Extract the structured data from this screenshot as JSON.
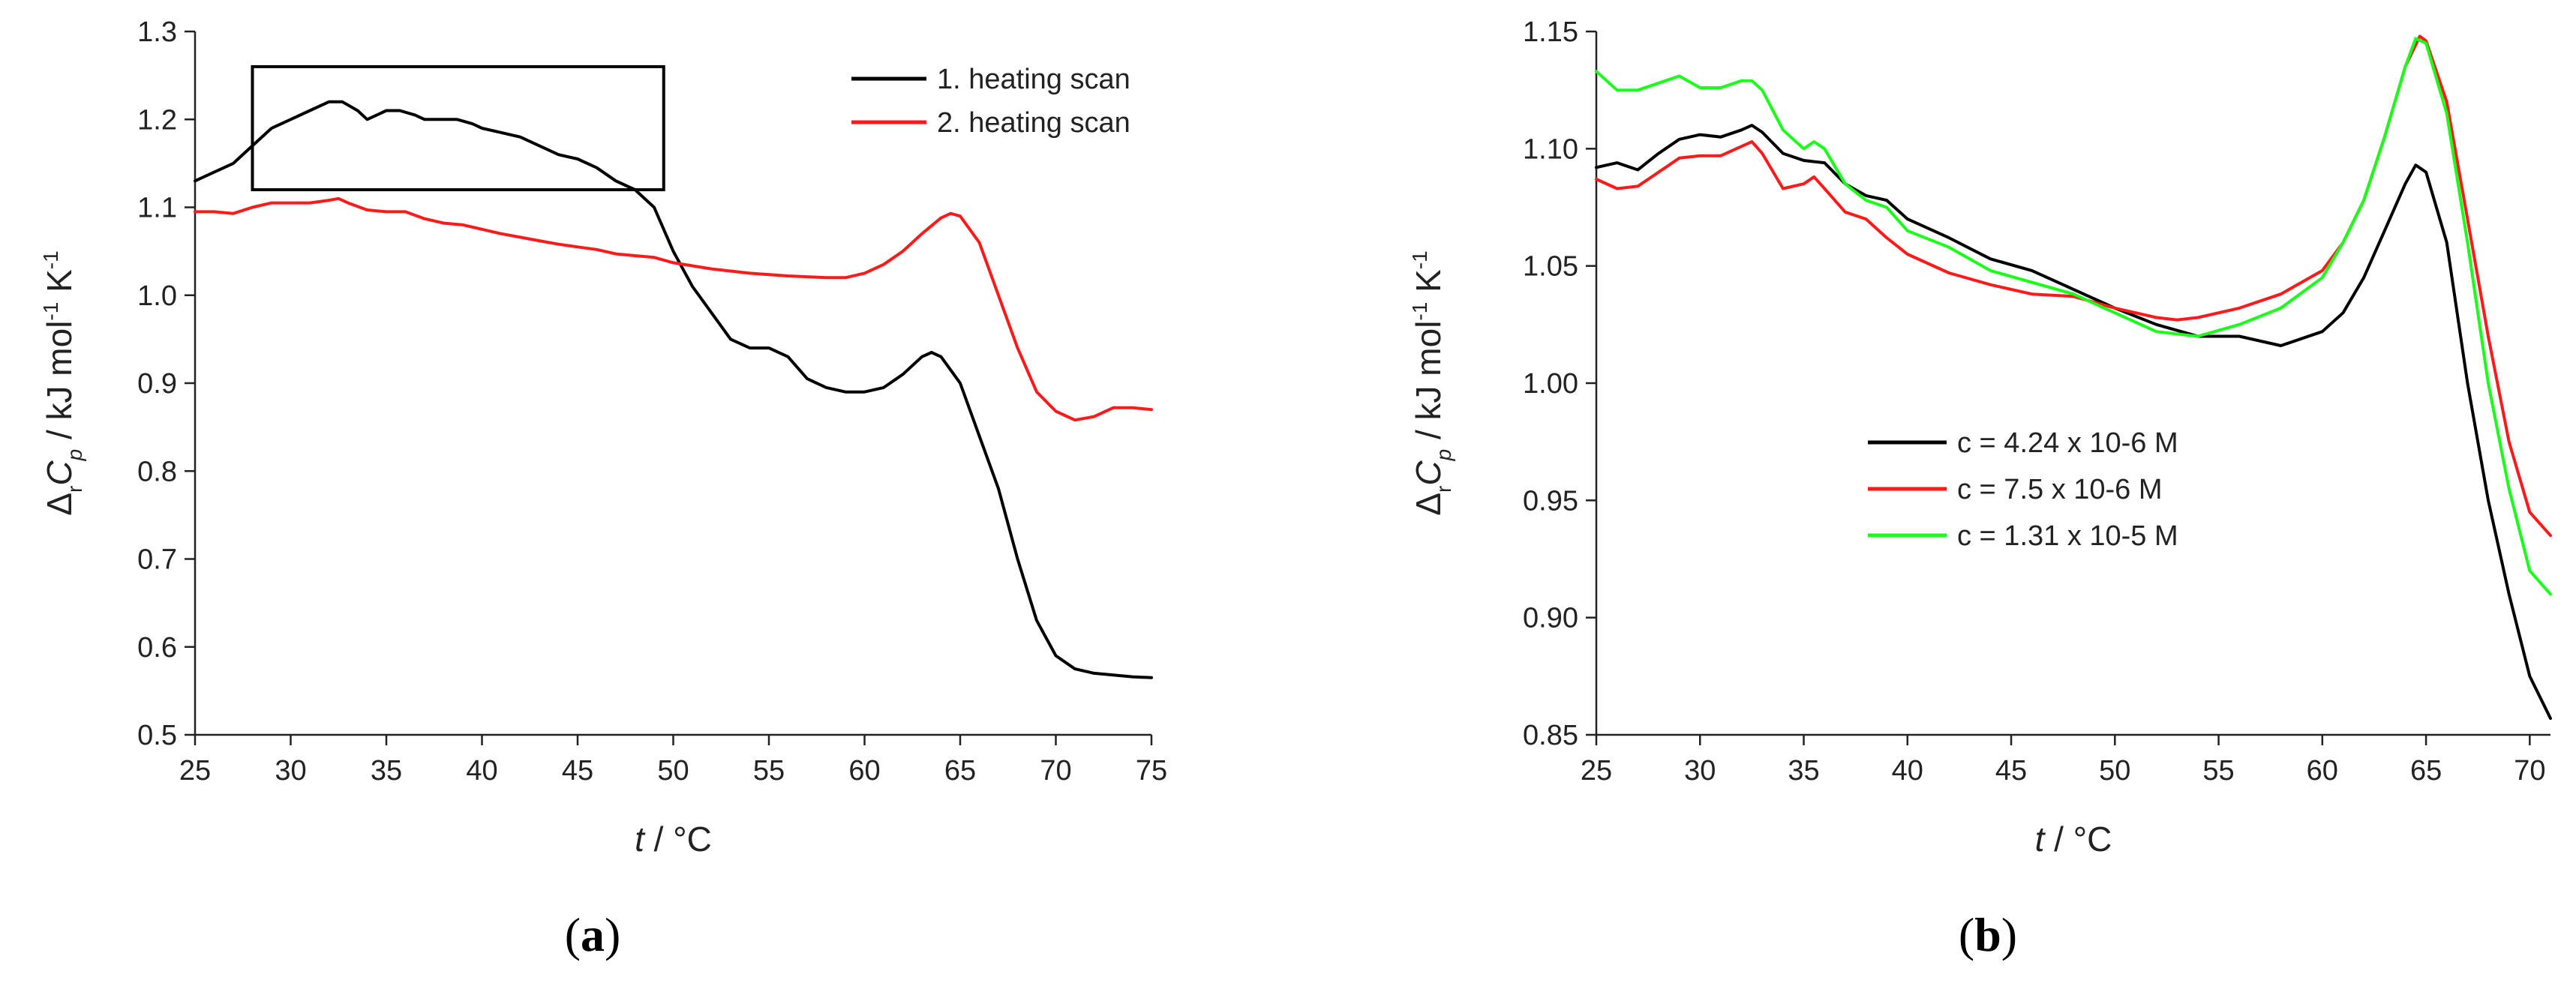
{
  "colors": {
    "black": "#000000",
    "red": "#ff1a1a",
    "green": "#1aff1a"
  },
  "chart_data": [
    {
      "type": "line",
      "panel_label": "a",
      "xlabel_var": "t",
      "xlabel_unit": " / °C",
      "ylabel": {
        "delta": "Δ",
        "r": "r",
        "C": "C",
        "p": "p",
        "unit_a": " / kJ mol",
        "exp1": "-1",
        "unit_b": " K",
        "exp2": "-1"
      },
      "xlim": [
        25,
        75
      ],
      "ylim": [
        0.5,
        1.3
      ],
      "xticks": [
        "25",
        "30",
        "35",
        "40",
        "45",
        "50",
        "55",
        "60",
        "65",
        "70",
        "75"
      ],
      "yticks": [
        "0.5",
        "0.6",
        "0.7",
        "0.8",
        "0.9",
        "1.0",
        "1.1",
        "1.2",
        "1.3"
      ],
      "highlight_box": {
        "x_range": [
          28,
          49.5
        ],
        "y_range": [
          1.12,
          1.26
        ]
      },
      "legend_position": "top-right",
      "series": [
        {
          "name": "1. heating scan",
          "color": "#000000",
          "x": [
            25,
            26,
            27,
            28,
            29,
            30,
            31,
            32,
            32.7,
            33.5,
            34,
            35,
            35.7,
            36.5,
            37,
            38,
            38.7,
            39.5,
            40,
            41,
            42,
            43,
            44,
            45,
            46,
            47,
            48,
            49,
            50,
            51,
            52,
            53,
            54,
            55,
            56,
            57,
            58,
            59,
            60,
            61,
            62,
            63,
            63.5,
            64,
            65,
            66,
            67,
            68,
            69,
            70,
            71,
            72,
            73,
            74,
            75
          ],
          "y": [
            1.13,
            1.14,
            1.15,
            1.17,
            1.19,
            1.2,
            1.21,
            1.22,
            1.22,
            1.21,
            1.2,
            1.21,
            1.21,
            1.205,
            1.2,
            1.2,
            1.2,
            1.195,
            1.19,
            1.185,
            1.18,
            1.17,
            1.16,
            1.155,
            1.145,
            1.13,
            1.12,
            1.1,
            1.05,
            1.01,
            0.98,
            0.95,
            0.94,
            0.94,
            0.93,
            0.905,
            0.895,
            0.89,
            0.89,
            0.895,
            0.91,
            0.93,
            0.935,
            0.93,
            0.9,
            0.84,
            0.78,
            0.7,
            0.63,
            0.59,
            0.575,
            0.57,
            0.568,
            0.566,
            0.565
          ]
        },
        {
          "name": "2. heating scan",
          "color": "#ff1a1a",
          "x": [
            25,
            26,
            27,
            28,
            29,
            30,
            31,
            32,
            32.5,
            33,
            34,
            35,
            36,
            37,
            38,
            39,
            40,
            41,
            42,
            43,
            44,
            45,
            46,
            47,
            48,
            49,
            50,
            52,
            54,
            56,
            58,
            59,
            60,
            61,
            62,
            63,
            64,
            64.5,
            65,
            66,
            67,
            68,
            69,
            70,
            71,
            72,
            73,
            74,
            75
          ],
          "y": [
            1.095,
            1.095,
            1.093,
            1.1,
            1.105,
            1.105,
            1.105,
            1.108,
            1.11,
            1.105,
            1.097,
            1.095,
            1.095,
            1.087,
            1.082,
            1.08,
            1.075,
            1.07,
            1.066,
            1.062,
            1.058,
            1.055,
            1.052,
            1.047,
            1.045,
            1.043,
            1.037,
            1.03,
            1.025,
            1.022,
            1.02,
            1.02,
            1.025,
            1.035,
            1.05,
            1.07,
            1.088,
            1.093,
            1.09,
            1.06,
            1.0,
            0.94,
            0.89,
            0.868,
            0.858,
            0.862,
            0.872,
            0.872,
            0.87
          ]
        }
      ]
    },
    {
      "type": "line",
      "panel_label": "b",
      "xlabel_var": "t",
      "xlabel_unit": " / °C",
      "ylabel": {
        "delta": "Δ",
        "r": "r",
        "C": "C",
        "p": "p",
        "unit_a": " / kJ mol",
        "exp1": "-1",
        "unit_b": " K",
        "exp2": "-1"
      },
      "xlim": [
        25,
        71
      ],
      "ylim": [
        0.85,
        1.15
      ],
      "xticks": [
        "25",
        "30",
        "35",
        "40",
        "45",
        "50",
        "55",
        "60",
        "65",
        "70"
      ],
      "yticks": [
        "0.85",
        "0.90",
        "0.95",
        "1.00",
        "1.05",
        "1.10",
        "1.15"
      ],
      "legend_position": "center-left",
      "series": [
        {
          "name": "c = 4.24 x 10-6 M",
          "color": "#000000",
          "x": [
            25,
            26,
            27,
            28,
            29,
            30,
            31,
            32,
            32.5,
            33,
            34,
            35,
            36,
            37,
            38,
            39,
            40,
            42,
            44,
            46,
            48,
            50,
            52,
            54,
            56,
            58,
            60,
            61,
            62,
            63,
            64,
            64.5,
            65,
            66,
            67,
            68,
            69,
            70,
            71
          ],
          "y": [
            1.092,
            1.094,
            1.091,
            1.098,
            1.104,
            1.106,
            1.105,
            1.108,
            1.11,
            1.107,
            1.098,
            1.095,
            1.094,
            1.085,
            1.08,
            1.078,
            1.07,
            1.062,
            1.053,
            1.048,
            1.04,
            1.032,
            1.025,
            1.02,
            1.02,
            1.016,
            1.022,
            1.03,
            1.045,
            1.065,
            1.085,
            1.093,
            1.09,
            1.06,
            1.0,
            0.95,
            0.91,
            0.875,
            0.857
          ]
        },
        {
          "name": "c = 7.5 x 10-6 M",
          "color": "#ff1a1a",
          "x": [
            25,
            26,
            27,
            28,
            29,
            30,
            31,
            32,
            32.5,
            33,
            34,
            35,
            35.5,
            36,
            37,
            38,
            39,
            40,
            42,
            44,
            46,
            48,
            50,
            51,
            52,
            53,
            54,
            56,
            58,
            60,
            61,
            62,
            63,
            64,
            64.7,
            65,
            66,
            67,
            68,
            69,
            70,
            71
          ],
          "y": [
            1.087,
            1.083,
            1.084,
            1.09,
            1.096,
            1.097,
            1.097,
            1.101,
            1.103,
            1.098,
            1.083,
            1.085,
            1.088,
            1.083,
            1.073,
            1.07,
            1.062,
            1.055,
            1.047,
            1.042,
            1.038,
            1.037,
            1.032,
            1.03,
            1.028,
            1.027,
            1.028,
            1.032,
            1.038,
            1.048,
            1.06,
            1.078,
            1.105,
            1.135,
            1.148,
            1.146,
            1.12,
            1.07,
            1.02,
            0.975,
            0.945,
            0.935
          ]
        },
        {
          "name": "c = 1.31 x 10-5 M",
          "color": "#1aff1a",
          "x": [
            25,
            26,
            27,
            28,
            29,
            30,
            31,
            32,
            32.5,
            33,
            34,
            35,
            35.5,
            36,
            37,
            38,
            39,
            40,
            42,
            44,
            46,
            48,
            50,
            52,
            54,
            56,
            58,
            60,
            61,
            62,
            63,
            64,
            64.5,
            65,
            66,
            67,
            68,
            69,
            70,
            71
          ],
          "y": [
            1.133,
            1.125,
            1.125,
            1.128,
            1.131,
            1.126,
            1.126,
            1.129,
            1.129,
            1.125,
            1.108,
            1.1,
            1.103,
            1.1,
            1.085,
            1.078,
            1.075,
            1.065,
            1.058,
            1.048,
            1.043,
            1.038,
            1.03,
            1.022,
            1.02,
            1.025,
            1.032,
            1.045,
            1.06,
            1.078,
            1.105,
            1.135,
            1.147,
            1.145,
            1.115,
            1.06,
            1.0,
            0.955,
            0.92,
            0.91
          ]
        }
      ]
    }
  ]
}
